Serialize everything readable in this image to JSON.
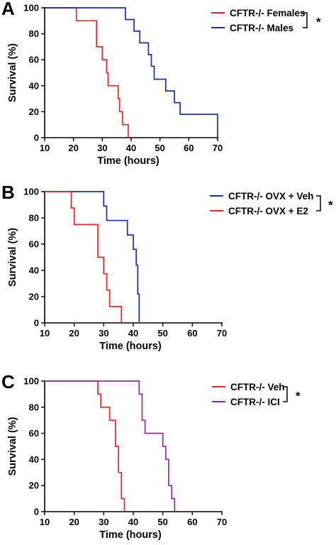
{
  "chart_data": [
    {
      "type": "line",
      "panel_label": "A",
      "xlabel": "Time (hours)",
      "ylabel": "Survival (%)",
      "xlim": [
        10,
        70
      ],
      "ylim": [
        0,
        100
      ],
      "xticks": [
        "10",
        "20",
        "30",
        "40",
        "50",
        "60",
        "70"
      ],
      "yticks": [
        "0",
        "20",
        "40",
        "60",
        "80",
        "100"
      ],
      "legend_position": "top-right",
      "significance": "*",
      "series": [
        {
          "name": "CFTR-/- Females",
          "color": "#e8262a",
          "x": [
            10,
            21,
            21,
            28,
            28,
            30,
            30,
            31.5,
            31.5,
            32,
            32,
            35.5,
            35.5,
            36,
            36,
            37,
            37,
            39,
            39
          ],
          "y": [
            100,
            100,
            90,
            90,
            70,
            70,
            60,
            60,
            50,
            50,
            40,
            40,
            30,
            30,
            20,
            20,
            10,
            10,
            0
          ]
        },
        {
          "name": "CFTR-/- Males",
          "color": "#1f2fa8",
          "x": [
            10,
            38,
            38,
            41,
            41,
            43,
            43,
            46,
            46,
            47,
            47,
            48,
            48,
            52,
            52,
            55,
            55,
            57,
            57,
            70,
            70
          ],
          "y": [
            100,
            100,
            91,
            91,
            82,
            82,
            73,
            73,
            64,
            64,
            55,
            55,
            45,
            45,
            36,
            36,
            27,
            27,
            18,
            18,
            0
          ]
        }
      ]
    },
    {
      "type": "line",
      "panel_label": "B",
      "xlabel": "Time (hours)",
      "ylabel": "Survival (%)",
      "xlim": [
        10,
        70
      ],
      "ylim": [
        0,
        100
      ],
      "xticks": [
        "10",
        "20",
        "30",
        "40",
        "50",
        "60",
        "70"
      ],
      "yticks": [
        "0",
        "20",
        "40",
        "60",
        "80",
        "100"
      ],
      "legend_position": "top-right",
      "significance": "*",
      "series": [
        {
          "name": "CFTR-/- OVX + Veh",
          "color": "#1f2fa8",
          "x": [
            10,
            30,
            30,
            31,
            31,
            38,
            38,
            40,
            40,
            41,
            41,
            41.5,
            41.5,
            42,
            42
          ],
          "y": [
            100,
            100,
            89,
            89,
            78,
            78,
            67,
            67,
            56,
            56,
            44,
            44,
            22,
            22,
            0
          ]
        },
        {
          "name": "CFTR-/- OVX + E2",
          "color": "#e8262a",
          "x": [
            10,
            19,
            19,
            20,
            20,
            28,
            28,
            30,
            30,
            31,
            31,
            32,
            32,
            36,
            36
          ],
          "y": [
            100,
            100,
            87.5,
            87.5,
            75,
            75,
            50,
            50,
            37.5,
            37.5,
            25,
            25,
            12.5,
            12.5,
            0
          ]
        }
      ]
    },
    {
      "type": "line",
      "panel_label": "C",
      "xlabel": "Time (hours)",
      "ylabel": "Survival (%)",
      "xlim": [
        10,
        70
      ],
      "ylim": [
        0,
        100
      ],
      "xticks": [
        "10",
        "20",
        "30",
        "40",
        "50",
        "60",
        "70"
      ],
      "yticks": [
        "0",
        "20",
        "40",
        "60",
        "80",
        "100"
      ],
      "legend_position": "top-right",
      "significance": "*",
      "series": [
        {
          "name": "CFTR-/- Veh",
          "color": "#e8262a",
          "x": [
            10,
            28,
            28,
            29,
            29,
            32,
            32,
            34,
            34,
            35,
            35,
            36,
            36,
            37,
            37
          ],
          "y": [
            100,
            100,
            90,
            90,
            80,
            80,
            70,
            70,
            50,
            50,
            30,
            30,
            10,
            10,
            0
          ]
        },
        {
          "name": "CFTR-/- ICI",
          "color": "#8b2fa0",
          "x": [
            10,
            42,
            42,
            43,
            43,
            44,
            44,
            50,
            50,
            51,
            51,
            52,
            52,
            53,
            53,
            54,
            54
          ],
          "y": [
            100,
            100,
            90,
            90,
            70,
            70,
            60,
            60,
            50,
            50,
            40,
            40,
            20,
            20,
            10,
            10,
            0
          ]
        }
      ]
    }
  ]
}
